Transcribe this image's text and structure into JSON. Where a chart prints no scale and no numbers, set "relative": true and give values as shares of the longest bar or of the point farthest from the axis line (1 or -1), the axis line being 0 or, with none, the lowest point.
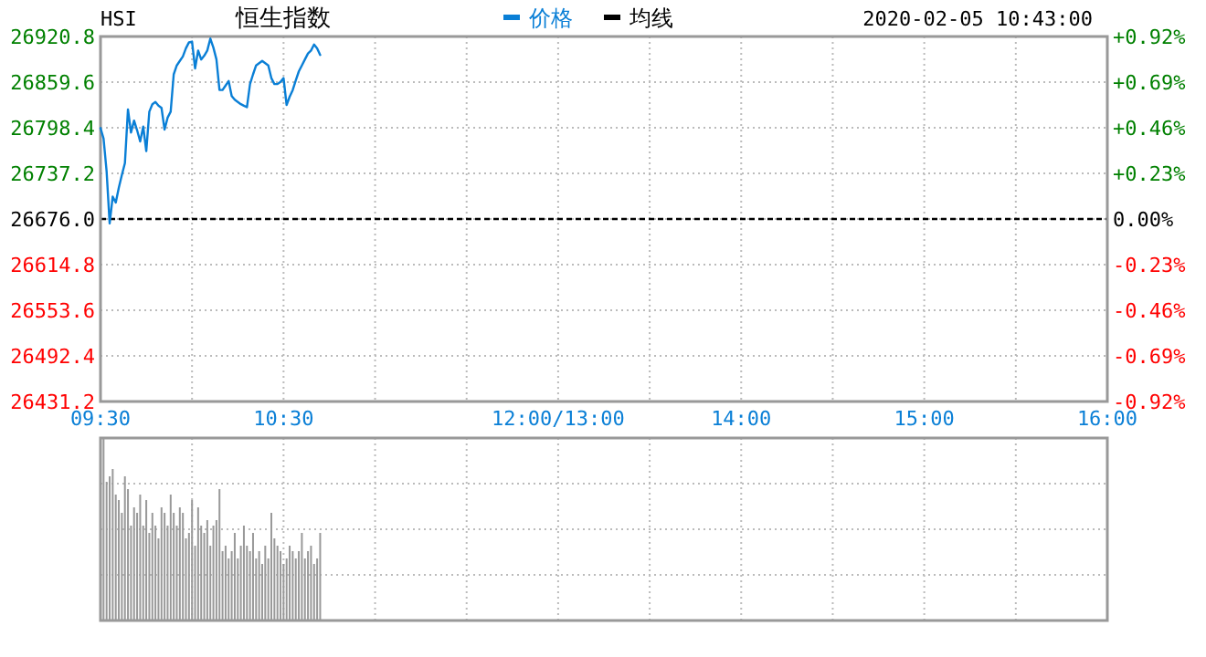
{
  "chart_data": [
    {
      "type": "line",
      "title": "恒生指数",
      "annotations": [
        "HSI",
        "2020-02-05 10:43:00"
      ],
      "legend": "top",
      "grid": true,
      "categories": [
        "09:30",
        null,
        null,
        null,
        null,
        null,
        null,
        null,
        null,
        null,
        null,
        null,
        null,
        null,
        null,
        null,
        null,
        null,
        null,
        null,
        null,
        null,
        null,
        null,
        null,
        null,
        null,
        null,
        null,
        null,
        null,
        null,
        null,
        null,
        null,
        null,
        null,
        null,
        null,
        null,
        null,
        null,
        null,
        null,
        null,
        null,
        null,
        null,
        null,
        null,
        null,
        null,
        null,
        null,
        null,
        null,
        null,
        null,
        null,
        null,
        "10:30",
        null,
        null,
        null,
        null,
        null,
        null,
        null,
        null,
        null,
        null,
        null,
        null,
        null,
        null,
        null,
        null,
        null,
        null,
        null,
        null,
        null,
        null,
        null,
        null,
        null,
        null,
        null,
        null,
        null,
        null,
        null,
        null,
        null,
        null,
        null,
        null,
        null,
        null,
        null,
        null,
        null,
        null,
        null,
        null,
        null,
        null,
        null,
        null,
        null,
        null,
        null,
        null,
        null,
        null,
        null,
        null,
        null,
        null,
        null,
        null,
        null,
        null,
        null,
        null,
        null,
        null,
        null,
        null,
        null,
        null,
        null,
        null,
        null,
        null,
        null,
        null,
        null,
        null,
        null,
        null,
        null,
        null,
        null,
        null,
        null,
        null,
        null,
        null,
        null,
        "12:00/13:00",
        null,
        null,
        null,
        null,
        null,
        null,
        null,
        null,
        null,
        null,
        null,
        null,
        null,
        null,
        null,
        null,
        null,
        null,
        null,
        null,
        null,
        null,
        null,
        null,
        null,
        null,
        null,
        null,
        null,
        null,
        null,
        null,
        null,
        null,
        null,
        null,
        null,
        null,
        null,
        null,
        null,
        null,
        null,
        null,
        null,
        null,
        null,
        null,
        null,
        null,
        null,
        null,
        null,
        null,
        null,
        null,
        null,
        null,
        null,
        "14:00",
        null,
        null,
        null,
        null,
        null,
        null,
        null,
        null,
        null,
        null,
        null,
        null,
        null,
        null,
        null,
        null,
        null,
        null,
        null,
        null,
        null,
        null,
        null,
        null,
        null,
        null,
        null,
        null,
        null,
        null,
        null,
        null,
        null,
        null,
        null,
        null,
        null,
        null,
        null,
        null,
        null,
        null,
        null,
        null,
        null,
        null,
        null,
        null,
        null,
        null,
        null,
        null,
        null,
        null,
        null,
        null,
        null,
        null,
        null,
        "15:00",
        null,
        null,
        null,
        null,
        null,
        null,
        null,
        null,
        null,
        null,
        null,
        null,
        null,
        null,
        null,
        null,
        null,
        null,
        null,
        null,
        null,
        null,
        null,
        null,
        null,
        null,
        null,
        null,
        null,
        null,
        null,
        null,
        null,
        null,
        null,
        null,
        null,
        null,
        null,
        null,
        null,
        null,
        null,
        null,
        null,
        null,
        null,
        null,
        null,
        null,
        null,
        null,
        null,
        null,
        null,
        null,
        null,
        null,
        null,
        "16:00"
      ],
      "ylim": [
        26431.2,
        26920.8
      ],
      "yticks": [
        26431.2,
        26492.4,
        26553.6,
        26614.8,
        {
          "value": 26676,
          "label": "26676.0"
        },
        26737.2,
        26798.4,
        26859.6,
        26920.8
      ],
      "y2lim": [
        -0.92,
        0.92
      ],
      "y2ticks": [
        {
          "value": -0.92,
          "label": "-0.92%"
        },
        {
          "value": -0.69,
          "label": "-0.69%"
        },
        {
          "value": -0.46,
          "label": "-0.46%"
        },
        {
          "value": -0.23,
          "label": "-0.23%"
        },
        {
          "value": 0,
          "label": "0.00%"
        },
        {
          "value": 0.23,
          "label": "+0.23%"
        },
        {
          "value": 0.46,
          "label": "+0.46%"
        },
        {
          "value": 0.69,
          "label": "+0.69%"
        },
        {
          "value": 0.92,
          "label": "+0.92%"
        }
      ],
      "ref_lines": [
        {
          "axis": "y",
          "value": 26676,
          "color": "#000000",
          "line_style": "dashed"
        }
      ],
      "series": [
        {
          "name": "价格",
          "color": "#0a7fd6",
          "values": [
            26798,
            26784,
            26740,
            26670,
            26706,
            26698,
            26718,
            26735,
            26751,
            26823,
            26792,
            26808,
            26795,
            26780,
            26800,
            26767,
            26820,
            26830,
            26833,
            26828,
            26825,
            26796,
            26812,
            26820,
            26870,
            26882,
            26888,
            26894,
            26905,
            26913,
            26914,
            26878,
            26902,
            26890,
            26895,
            26902,
            26918,
            26906,
            26890,
            26849,
            26849,
            26855,
            26861,
            26841,
            26836,
            26833,
            26830,
            26828,
            26826,
            26857,
            26870,
            26882,
            26885,
            26888,
            26885,
            26882,
            26865,
            26857,
            26857,
            26860,
            26865,
            26829,
            26840,
            26849,
            26862,
            26874,
            26882,
            26890,
            26898,
            26902,
            26910,
            26905,
            26896,
            null,
            null,
            null,
            null,
            null,
            null,
            null,
            null,
            null,
            null,
            null,
            null,
            null,
            null,
            null,
            null,
            null,
            null,
            null,
            null,
            null,
            null,
            null,
            null,
            null,
            null,
            null,
            null,
            null,
            null,
            null,
            null,
            null,
            null,
            null,
            null,
            null,
            null,
            null,
            null,
            null,
            null,
            null,
            null,
            null,
            null,
            null,
            null,
            null,
            null,
            null,
            null,
            null,
            null,
            null,
            null,
            null,
            null,
            null,
            null,
            null,
            null,
            null,
            null,
            null,
            null,
            null,
            null,
            null,
            null,
            null,
            null,
            null,
            null,
            null,
            null,
            null,
            null,
            null,
            null,
            null,
            null,
            null,
            null,
            null,
            null,
            null,
            null,
            null,
            null,
            null,
            null,
            null,
            null,
            null,
            null,
            null,
            null,
            null,
            null,
            null,
            null,
            null,
            null,
            null,
            null,
            null,
            null,
            null,
            null,
            null,
            null,
            null,
            null,
            null,
            null,
            null,
            null,
            null,
            null,
            null,
            null,
            null,
            null,
            null,
            null,
            null,
            null,
            null,
            null,
            null,
            null,
            null,
            null,
            null,
            null,
            null,
            null,
            null,
            null,
            null,
            null,
            null,
            null,
            null,
            null,
            null,
            null,
            null,
            null,
            null,
            null,
            null,
            null,
            null,
            null,
            null,
            null,
            null,
            null,
            null,
            null,
            null,
            null,
            null,
            null,
            null,
            null,
            null,
            null,
            null,
            null,
            null,
            null,
            null,
            null,
            null,
            null,
            null,
            null,
            null,
            null,
            null,
            null,
            null,
            null,
            null,
            null,
            null,
            null,
            null,
            null,
            null,
            null,
            null,
            null,
            null,
            null,
            null,
            null,
            null,
            null,
            null,
            null,
            null,
            null,
            null,
            null,
            null,
            null,
            null,
            null,
            null,
            null,
            null,
            null,
            null,
            null,
            null,
            null,
            null,
            null,
            null,
            null,
            null,
            null,
            null,
            null,
            null,
            null,
            null,
            null,
            null,
            null,
            null,
            null,
            null,
            null,
            null,
            null,
            null,
            null,
            null,
            null,
            null,
            null,
            null,
            null,
            null,
            null,
            null,
            null,
            null,
            null,
            null,
            null,
            null,
            null
          ]
        },
        {
          "name": "均线",
          "color": "#000000",
          "values": [
            null,
            null,
            null,
            null,
            null,
            null,
            null,
            null,
            null,
            null,
            null,
            null,
            null,
            null,
            null,
            null,
            null,
            null,
            null,
            null,
            null,
            null,
            null,
            null,
            null,
            null,
            null,
            null,
            null,
            null,
            null,
            null,
            null,
            null,
            null,
            null,
            null,
            null,
            null,
            null,
            null,
            null,
            null,
            null,
            null,
            null,
            null,
            null,
            null,
            null,
            null,
            null,
            null,
            null,
            null,
            null,
            null,
            null,
            null,
            null,
            null,
            null,
            null,
            null,
            null,
            null,
            null,
            null,
            null,
            null,
            null,
            null,
            null,
            null,
            null,
            null,
            null,
            null,
            null,
            null,
            null,
            null,
            null,
            null,
            null,
            null,
            null,
            null,
            null,
            null,
            null,
            null,
            null,
            null,
            null,
            null,
            null,
            null,
            null,
            null,
            null,
            null,
            null,
            null,
            null,
            null,
            null,
            null,
            null,
            null,
            null,
            null,
            null,
            null,
            null,
            null,
            null,
            null,
            null,
            null,
            null,
            null,
            null,
            null,
            null,
            null,
            null,
            null,
            null,
            null,
            null,
            null,
            null,
            null,
            null,
            null,
            null,
            null,
            null,
            null,
            null,
            null,
            null,
            null,
            null,
            null,
            null,
            null,
            null,
            null,
            null,
            null,
            null,
            null,
            null,
            null,
            null,
            null,
            null,
            null,
            null,
            null,
            null,
            null,
            null,
            null,
            null,
            null,
            null,
            null,
            null,
            null,
            null,
            null,
            null,
            null,
            null,
            null,
            null,
            null,
            null,
            null,
            null,
            null,
            null,
            null,
            null,
            null,
            null,
            null,
            null,
            null,
            null,
            null,
            null,
            null,
            null,
            null,
            null,
            null,
            null,
            null,
            null,
            null,
            null,
            null,
            null,
            null,
            null,
            null,
            null,
            null,
            null,
            null,
            null,
            null,
            null,
            null,
            null,
            null,
            null,
            null,
            null,
            null,
            null,
            null,
            null,
            null,
            null,
            null,
            null,
            null,
            null,
            null,
            null,
            null,
            null,
            null,
            null,
            null,
            null,
            null,
            null,
            null,
            null,
            null,
            null,
            null,
            null,
            null,
            null,
            null,
            null,
            null,
            null,
            null,
            null,
            null,
            null,
            null,
            null,
            null,
            null,
            null,
            null,
            null,
            null,
            null,
            null,
            null,
            null,
            null,
            null,
            null,
            null,
            null,
            null,
            null,
            null,
            null,
            null,
            null,
            null,
            null,
            null,
            null,
            null,
            null,
            null,
            null,
            null,
            null,
            null,
            null,
            null,
            null,
            null,
            null,
            null,
            null,
            null,
            null,
            null,
            null,
            null,
            null,
            null,
            null,
            null,
            null,
            null,
            null,
            null,
            null,
            null,
            null,
            null,
            null,
            null,
            null,
            null,
            null,
            null,
            null,
            null,
            null,
            null,
            null,
            null,
            null,
            null
          ]
        }
      ]
    },
    {
      "type": "bar",
      "relative": true,
      "grid": true,
      "color": "#999999",
      "categories": [
        null,
        null,
        null,
        null,
        null,
        null,
        null,
        null,
        null,
        null,
        null,
        null,
        null,
        null,
        null,
        null,
        null,
        null,
        null,
        null,
        null,
        null,
        null,
        null,
        null,
        null,
        null,
        null,
        null,
        null,
        null,
        null,
        null,
        null,
        null,
        null,
        null,
        null,
        null,
        null,
        null,
        null,
        null,
        null,
        null,
        null,
        null,
        null,
        null,
        null,
        null,
        null,
        null,
        null,
        null,
        null,
        null,
        null,
        null,
        null,
        null,
        null,
        null,
        null,
        null,
        null,
        null,
        null,
        null,
        null,
        null,
        null,
        null,
        null,
        null,
        null,
        null,
        null,
        null,
        null,
        null,
        null,
        null,
        null,
        null,
        null,
        null,
        null,
        null,
        null,
        null,
        null,
        null,
        null,
        null,
        null,
        null,
        null,
        null,
        null,
        null,
        null,
        null,
        null,
        null,
        null,
        null,
        null,
        null,
        null,
        null,
        null,
        null,
        null,
        null,
        null,
        null,
        null,
        null,
        null,
        null,
        null,
        null,
        null,
        null,
        null,
        null,
        null,
        null,
        null,
        null,
        null,
        null,
        null,
        null,
        null,
        null,
        null,
        null,
        null,
        null,
        null,
        null,
        null,
        null,
        null,
        null,
        null,
        null,
        null,
        null,
        null,
        null,
        null,
        null,
        null,
        null,
        null,
        null,
        null,
        null,
        null,
        null,
        null,
        null,
        null,
        null,
        null,
        null,
        null,
        null,
        null,
        null,
        null,
        null,
        null,
        null,
        null,
        null,
        null,
        null,
        null,
        null,
        null,
        null,
        null,
        null,
        null,
        null,
        null,
        null,
        null,
        null,
        null,
        null,
        null,
        null,
        null,
        null,
        null,
        null,
        null,
        null,
        null,
        null,
        null,
        null,
        null,
        null,
        null,
        null,
        null,
        null,
        null,
        null,
        null,
        null,
        null,
        null,
        null,
        null,
        null,
        null,
        null,
        null,
        null,
        null,
        null,
        null,
        null,
        null,
        null,
        null,
        null,
        null,
        null,
        null,
        null,
        null,
        null,
        null,
        null,
        null,
        null,
        null,
        null,
        null,
        null,
        null,
        null,
        null,
        null,
        null,
        null,
        null,
        null,
        null,
        null,
        null,
        null,
        null,
        null,
        null,
        null,
        null,
        null,
        null,
        null,
        null,
        null,
        null,
        null,
        null,
        null,
        null,
        null,
        null,
        null,
        null,
        null,
        null,
        null,
        null,
        null,
        null,
        null,
        null,
        null,
        null,
        null,
        null,
        null,
        null,
        null,
        null,
        null,
        null,
        null,
        null,
        null,
        null,
        null,
        null,
        null,
        null,
        null,
        null,
        null,
        null,
        null,
        null,
        null,
        null,
        null,
        null,
        null,
        null,
        null,
        null,
        null,
        null,
        null,
        null,
        null,
        null,
        null,
        null,
        null,
        null,
        null,
        null
      ],
      "values": [
        null,
        1.0,
        0.76,
        0.79,
        0.83,
        0.69,
        0.66,
        0.59,
        0.79,
        0.72,
        0.52,
        0.62,
        0.59,
        0.69,
        0.52,
        0.66,
        0.48,
        0.59,
        0.52,
        0.45,
        0.62,
        0.59,
        0.52,
        0.69,
        0.59,
        0.52,
        0.62,
        0.59,
        0.45,
        0.48,
        0.66,
        0.41,
        0.62,
        0.52,
        0.48,
        0.55,
        0.41,
        0.52,
        0.55,
        0.72,
        0.38,
        0.41,
        0.34,
        0.38,
        0.48,
        0.34,
        0.41,
        0.52,
        0.41,
        0.38,
        0.48,
        0.34,
        0.38,
        0.31,
        0.41,
        0.34,
        0.59,
        0.45,
        0.41,
        0.38,
        0.31,
        0.34,
        0.41,
        0.38,
        0.34,
        0.38,
        0.48,
        0.34,
        0.38,
        0.41,
        0.31,
        0.34,
        0.48,
        null,
        null,
        null,
        null,
        null,
        null,
        null,
        null,
        null,
        null,
        null,
        null,
        null,
        null,
        null,
        null,
        null,
        null,
        null,
        null,
        null,
        null,
        null,
        null,
        null,
        null,
        null,
        null,
        null,
        null,
        null,
        null,
        null,
        null,
        null,
        null,
        null,
        null,
        null,
        null,
        null,
        null,
        null,
        null,
        null,
        null,
        null,
        null,
        null,
        null,
        null,
        null,
        null,
        null,
        null,
        null,
        null,
        null,
        null,
        null,
        null,
        null,
        null,
        null,
        null,
        null,
        null,
        null,
        null,
        null,
        null,
        null,
        null,
        null,
        null,
        null,
        null,
        null,
        null,
        null,
        null,
        null,
        null,
        null,
        null,
        null,
        null,
        null,
        null,
        null,
        null,
        null,
        null,
        null,
        null,
        null,
        null,
        null,
        null,
        null,
        null,
        null,
        null,
        null,
        null,
        null,
        null,
        null,
        null,
        null,
        null,
        null,
        null,
        null,
        null,
        null,
        null,
        null,
        null,
        null,
        null,
        null,
        null,
        null,
        null,
        null,
        null,
        null,
        null,
        null,
        null,
        null,
        null,
        null,
        null,
        null,
        null,
        null,
        null,
        null,
        null,
        null,
        null,
        null,
        null,
        null,
        null,
        null,
        null,
        null,
        null,
        null,
        null,
        null,
        null,
        null,
        null,
        null,
        null,
        null,
        null,
        null,
        null,
        null,
        null,
        null,
        null,
        null,
        null,
        null,
        null,
        null,
        null,
        null,
        null,
        null,
        null,
        null,
        null,
        null,
        null,
        null,
        null,
        null,
        null,
        null,
        null,
        null,
        null,
        null,
        null,
        null,
        null,
        null,
        null,
        null,
        null,
        null,
        null,
        null,
        null,
        null,
        null,
        null,
        null,
        null,
        null,
        null,
        null,
        null,
        null,
        null,
        null,
        null,
        null,
        null,
        null,
        null,
        null,
        null,
        null,
        null,
        null,
        null,
        null,
        null,
        null,
        null,
        null,
        null,
        null,
        null,
        null,
        null,
        null,
        null,
        null,
        null,
        null,
        null,
        null,
        null,
        null,
        null,
        null,
        null,
        null,
        null,
        null,
        null,
        null,
        null,
        null,
        null,
        null,
        null,
        null,
        null
      ]
    }
  ]
}
